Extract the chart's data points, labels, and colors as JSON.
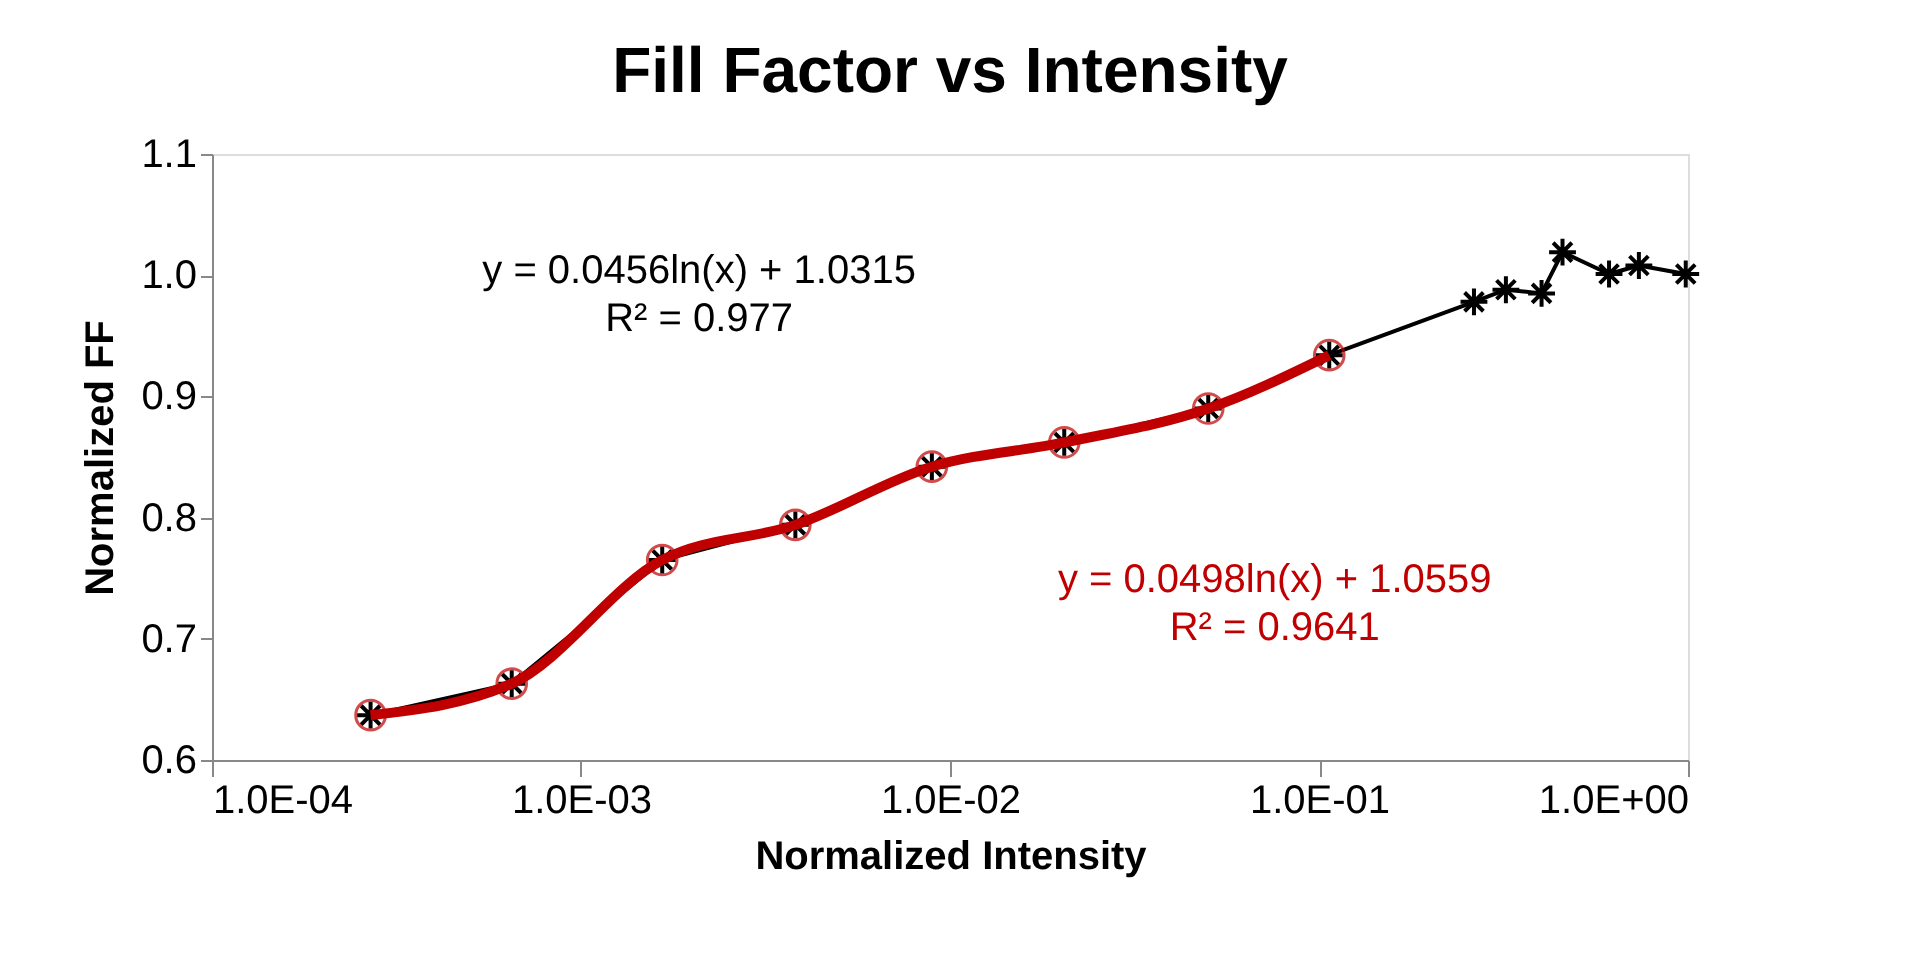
{
  "chart_data": {
    "type": "line",
    "title": "Fill Factor vs Intensity",
    "xlabel": "Normalized Intensity",
    "ylabel": "Normalized FF",
    "log": "x",
    "grid": false,
    "line_style": "solid",
    "xlim": [
      0.0001,
      1
    ],
    "xticks": [
      {
        "value": 0.0001,
        "label": "1.0E-04"
      },
      {
        "value": 0.001,
        "label": "1.0E-03"
      },
      {
        "value": 0.01,
        "label": "1.0E-02"
      },
      {
        "value": 0.1,
        "label": "1.0E-01"
      },
      {
        "value": 1,
        "label": "1.0E+00"
      }
    ],
    "ylim": [
      0.6,
      1.1
    ],
    "yticks": [
      {
        "value": 0.6,
        "label": "0.6"
      },
      {
        "value": 0.7,
        "label": "0.7"
      },
      {
        "value": 0.8,
        "label": "0.8"
      },
      {
        "value": 0.9,
        "label": "0.9"
      },
      {
        "value": 1.0,
        "label": "1.0"
      },
      {
        "value": 1.1,
        "label": "1.1"
      }
    ],
    "series": [
      {
        "color": "#000000",
        "marker": "cross",
        "x": [
          0.000269,
          0.000649,
          0.00166,
          0.00381,
          0.00893,
          0.0204,
          0.0501,
          0.1066,
          0.263,
          0.321,
          0.401,
          0.457,
          0.611,
          0.736,
          0.986
        ],
        "values": [
          0.637,
          0.663,
          0.765,
          0.794,
          0.842,
          0.862,
          0.89,
          0.934,
          0.978,
          0.988,
          0.985,
          1.019,
          1.001,
          1.008,
          1.001
        ]
      },
      {
        "color": "#c00000",
        "marker": "circle",
        "x": [
          0.000269,
          0.000649,
          0.00166,
          0.00381,
          0.00893,
          0.0204,
          0.0501,
          0.1066
        ],
        "values": [
          0.637,
          0.663,
          0.765,
          0.794,
          0.842,
          0.862,
          0.89,
          0.934
        ]
      }
    ],
    "annotations": [
      "y = 0.0456ln(x) + 1.0315\nR² = 0.977",
      "y = 0.0498ln(x) + 1.0559\nR² = 0.9641"
    ]
  }
}
